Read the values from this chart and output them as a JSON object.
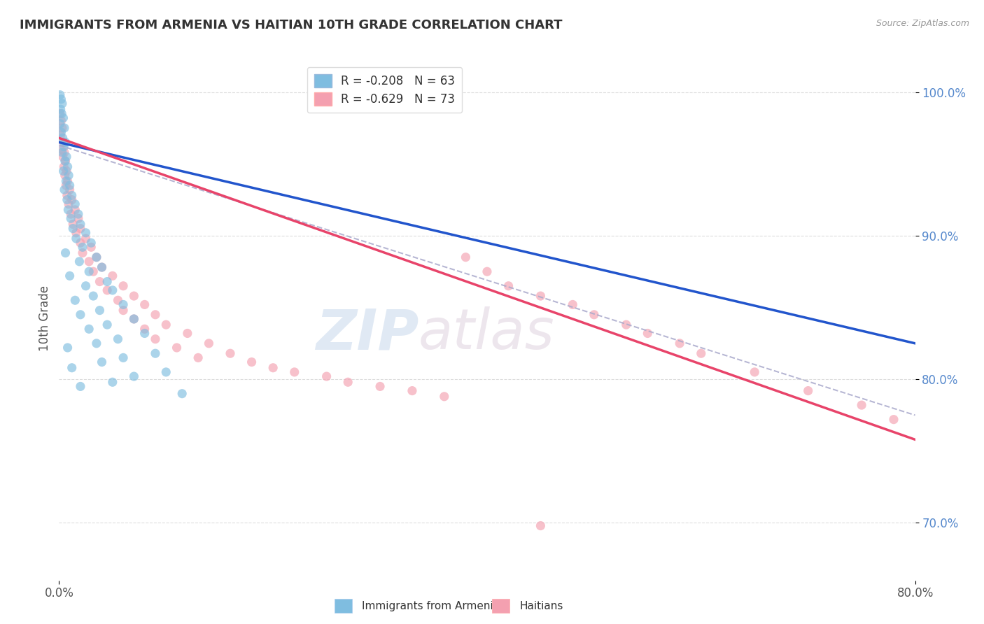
{
  "title": "IMMIGRANTS FROM ARMENIA VS HAITIAN 10TH GRADE CORRELATION CHART",
  "source": "Source: ZipAtlas.com",
  "ylabel": "10th Grade",
  "x_min": 0.0,
  "x_max": 80.0,
  "y_min": 66.0,
  "y_max": 102.5,
  "y_ticks": [
    70.0,
    80.0,
    90.0,
    100.0
  ],
  "x_ticks": [
    0.0,
    80.0
  ],
  "x_tick_labels": [
    "0.0%",
    "80.0%"
  ],
  "y_tick_labels": [
    "70.0%",
    "80.0%",
    "90.0%",
    "100.0%"
  ],
  "legend_blue_r": "R = -0.208",
  "legend_blue_n": "N = 63",
  "legend_pink_r": "R = -0.629",
  "legend_pink_n": "N = 73",
  "blue_color": "#7fbde0",
  "pink_color": "#f4a0b0",
  "blue_line_color": "#2255cc",
  "pink_line_color": "#e8446a",
  "dash_line_color": "#aaaacc",
  "watermark_zip": "ZIP",
  "watermark_atlas": "atlas",
  "legend_label_blue": "Immigrants from Armenia",
  "legend_label_pink": "Haitians",
  "blue_scatter": [
    [
      0.1,
      99.8
    ],
    [
      0.2,
      99.5
    ],
    [
      0.3,
      99.2
    ],
    [
      0.15,
      98.8
    ],
    [
      0.25,
      98.5
    ],
    [
      0.4,
      98.2
    ],
    [
      0.1,
      97.8
    ],
    [
      0.5,
      97.5
    ],
    [
      0.2,
      97.2
    ],
    [
      0.35,
      96.8
    ],
    [
      0.6,
      96.5
    ],
    [
      0.45,
      96.2
    ],
    [
      0.3,
      95.8
    ],
    [
      0.7,
      95.5
    ],
    [
      0.55,
      95.2
    ],
    [
      0.8,
      94.8
    ],
    [
      0.4,
      94.5
    ],
    [
      0.9,
      94.2
    ],
    [
      0.65,
      93.8
    ],
    [
      1.0,
      93.5
    ],
    [
      0.5,
      93.2
    ],
    [
      1.2,
      92.8
    ],
    [
      0.75,
      92.5
    ],
    [
      1.5,
      92.2
    ],
    [
      0.85,
      91.8
    ],
    [
      1.8,
      91.5
    ],
    [
      1.1,
      91.2
    ],
    [
      2.0,
      90.8
    ],
    [
      1.3,
      90.5
    ],
    [
      2.5,
      90.2
    ],
    [
      1.6,
      89.8
    ],
    [
      3.0,
      89.5
    ],
    [
      2.2,
      89.2
    ],
    [
      0.6,
      88.8
    ],
    [
      3.5,
      88.5
    ],
    [
      1.9,
      88.2
    ],
    [
      4.0,
      87.8
    ],
    [
      2.8,
      87.5
    ],
    [
      1.0,
      87.2
    ],
    [
      4.5,
      86.8
    ],
    [
      2.5,
      86.5
    ],
    [
      5.0,
      86.2
    ],
    [
      3.2,
      85.8
    ],
    [
      1.5,
      85.5
    ],
    [
      6.0,
      85.2
    ],
    [
      3.8,
      84.8
    ],
    [
      2.0,
      84.5
    ],
    [
      7.0,
      84.2
    ],
    [
      4.5,
      83.8
    ],
    [
      2.8,
      83.5
    ],
    [
      8.0,
      83.2
    ],
    [
      5.5,
      82.8
    ],
    [
      3.5,
      82.5
    ],
    [
      0.8,
      82.2
    ],
    [
      9.0,
      81.8
    ],
    [
      6.0,
      81.5
    ],
    [
      4.0,
      81.2
    ],
    [
      1.2,
      80.8
    ],
    [
      10.0,
      80.5
    ],
    [
      7.0,
      80.2
    ],
    [
      5.0,
      79.8
    ],
    [
      2.0,
      79.5
    ],
    [
      11.5,
      79.0
    ]
  ],
  "pink_scatter": [
    [
      0.1,
      98.5
    ],
    [
      0.2,
      98.0
    ],
    [
      0.3,
      97.5
    ],
    [
      0.15,
      97.0
    ],
    [
      0.4,
      96.5
    ],
    [
      0.25,
      96.0
    ],
    [
      0.5,
      95.8
    ],
    [
      0.35,
      95.5
    ],
    [
      0.6,
      95.2
    ],
    [
      0.45,
      94.8
    ],
    [
      0.7,
      94.5
    ],
    [
      0.55,
      94.2
    ],
    [
      0.8,
      93.8
    ],
    [
      0.65,
      93.5
    ],
    [
      1.0,
      93.2
    ],
    [
      0.75,
      92.8
    ],
    [
      1.2,
      92.5
    ],
    [
      0.9,
      92.2
    ],
    [
      1.5,
      91.8
    ],
    [
      1.1,
      91.5
    ],
    [
      1.8,
      91.2
    ],
    [
      1.3,
      90.8
    ],
    [
      2.0,
      90.5
    ],
    [
      1.6,
      90.2
    ],
    [
      2.5,
      89.8
    ],
    [
      2.0,
      89.5
    ],
    [
      3.0,
      89.2
    ],
    [
      2.2,
      88.8
    ],
    [
      3.5,
      88.5
    ],
    [
      2.8,
      88.2
    ],
    [
      4.0,
      87.8
    ],
    [
      3.2,
      87.5
    ],
    [
      5.0,
      87.2
    ],
    [
      3.8,
      86.8
    ],
    [
      6.0,
      86.5
    ],
    [
      4.5,
      86.2
    ],
    [
      7.0,
      85.8
    ],
    [
      5.5,
      85.5
    ],
    [
      8.0,
      85.2
    ],
    [
      6.0,
      84.8
    ],
    [
      9.0,
      84.5
    ],
    [
      7.0,
      84.2
    ],
    [
      10.0,
      83.8
    ],
    [
      8.0,
      83.5
    ],
    [
      12.0,
      83.2
    ],
    [
      9.0,
      82.8
    ],
    [
      14.0,
      82.5
    ],
    [
      11.0,
      82.2
    ],
    [
      16.0,
      81.8
    ],
    [
      13.0,
      81.5
    ],
    [
      18.0,
      81.2
    ],
    [
      20.0,
      80.8
    ],
    [
      22.0,
      80.5
    ],
    [
      25.0,
      80.2
    ],
    [
      27.0,
      79.8
    ],
    [
      30.0,
      79.5
    ],
    [
      33.0,
      79.2
    ],
    [
      36.0,
      78.8
    ],
    [
      38.0,
      88.5
    ],
    [
      40.0,
      87.5
    ],
    [
      42.0,
      86.5
    ],
    [
      45.0,
      85.8
    ],
    [
      48.0,
      85.2
    ],
    [
      50.0,
      84.5
    ],
    [
      53.0,
      83.8
    ],
    [
      55.0,
      83.2
    ],
    [
      58.0,
      82.5
    ],
    [
      60.0,
      81.8
    ],
    [
      65.0,
      80.5
    ],
    [
      70.0,
      79.2
    ],
    [
      75.0,
      78.2
    ],
    [
      78.0,
      77.2
    ],
    [
      45.0,
      69.8
    ]
  ],
  "blue_trend": [
    0.0,
    96.5,
    80.0,
    82.5
  ],
  "pink_trend": [
    0.0,
    96.8,
    80.0,
    75.8
  ],
  "dash_trend": [
    0.0,
    96.3,
    80.0,
    77.5
  ]
}
